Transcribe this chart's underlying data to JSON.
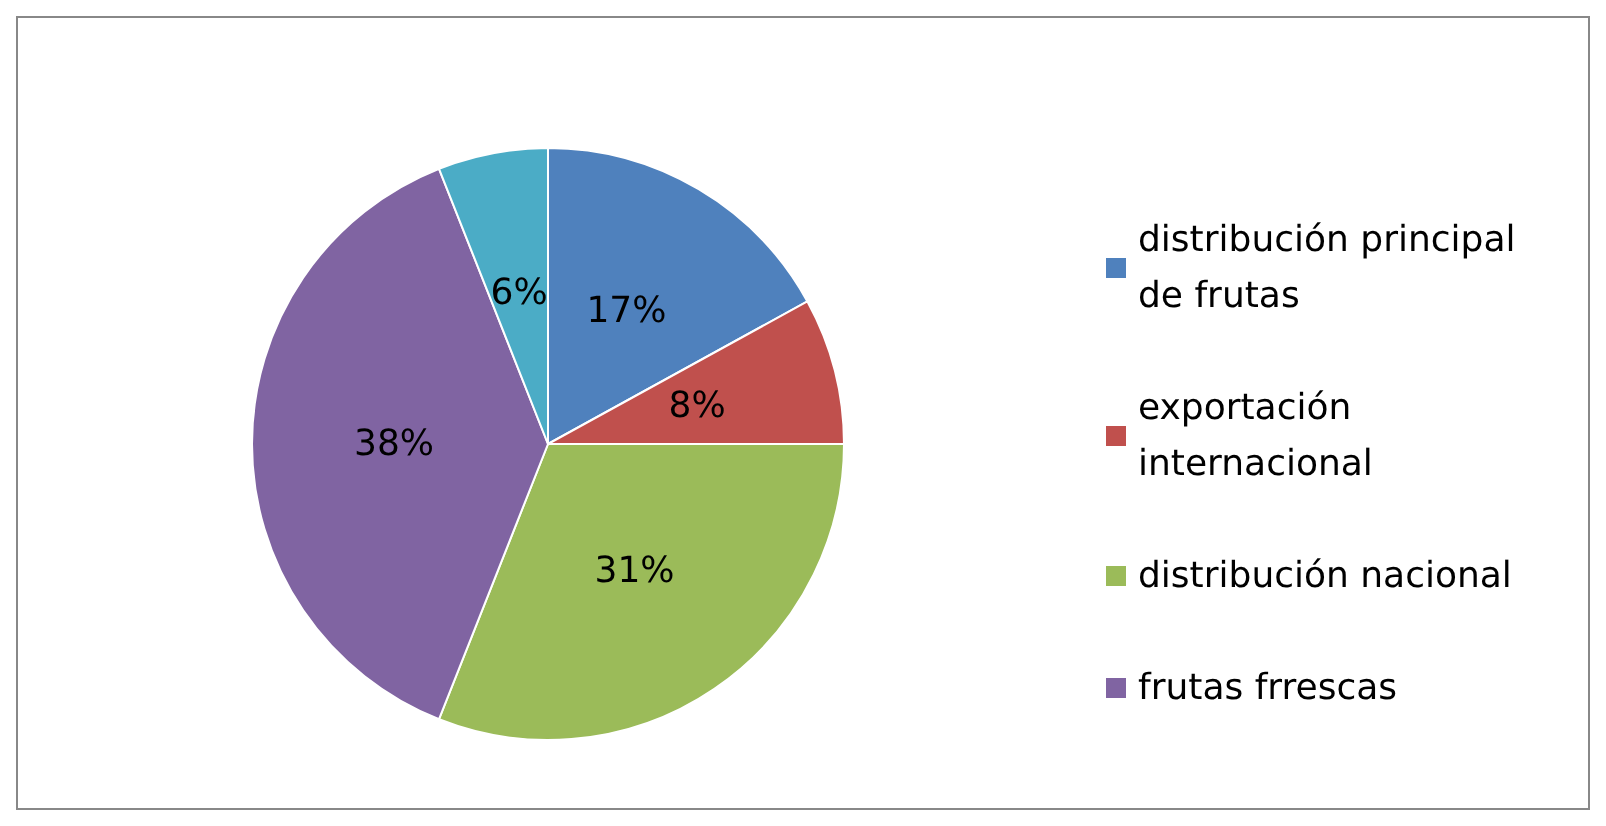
{
  "chart_data": {
    "type": "pie",
    "categories": [
      "distribución principal de frutas",
      "exportación internacional",
      "distribución nacional",
      "frutas frrescas",
      null
    ],
    "values": [
      17,
      8,
      31,
      38,
      6
    ],
    "value_labels": [
      "17%",
      "8%",
      "31%",
      "38%",
      "6%"
    ],
    "colors": [
      "#4f81bd",
      "#c0504d",
      "#9bbb59",
      "#8064a2",
      "#4bacc6"
    ],
    "legend": "right"
  }
}
